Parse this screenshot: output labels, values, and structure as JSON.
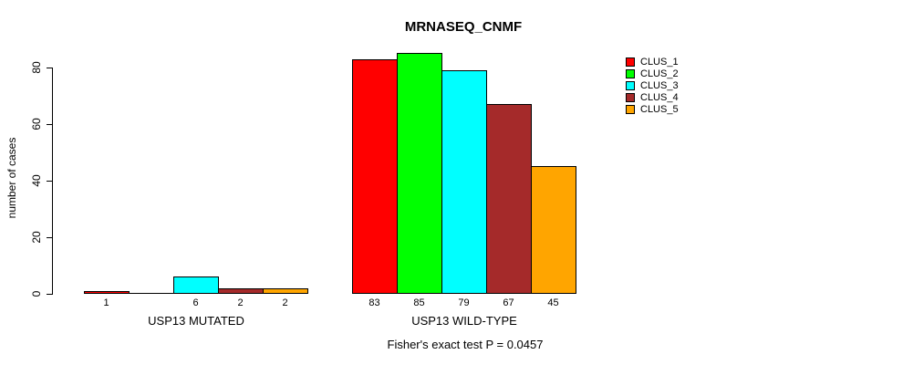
{
  "chart_data": {
    "type": "bar",
    "title": "MRNASEQ_CNMF",
    "ylabel": "number of cases",
    "xlabel": "",
    "yticks": [
      0,
      20,
      40,
      60,
      80
    ],
    "ylim": [
      0,
      85
    ],
    "grid": false,
    "legend_position": "right",
    "series": [
      {
        "name": "CLUS_1",
        "color": "#FF0000"
      },
      {
        "name": "CLUS_2",
        "color": "#00FF00"
      },
      {
        "name": "CLUS_3",
        "color": "#00FFFF"
      },
      {
        "name": "CLUS_4",
        "color": "#A52A2A"
      },
      {
        "name": "CLUS_5",
        "color": "#FFA500"
      }
    ],
    "groups": [
      {
        "label": "USP13 MUTATED",
        "values": [
          1,
          0,
          6,
          2,
          2
        ],
        "bar_labels": [
          "1",
          "",
          "6",
          "2",
          "2"
        ]
      },
      {
        "label": "USP13 WILD-TYPE",
        "values": [
          83,
          85,
          79,
          67,
          45
        ],
        "bar_labels": [
          "83",
          "85",
          "79",
          "67",
          "45"
        ]
      }
    ],
    "annotation": "Fisher's exact test P = 0.0457"
  }
}
